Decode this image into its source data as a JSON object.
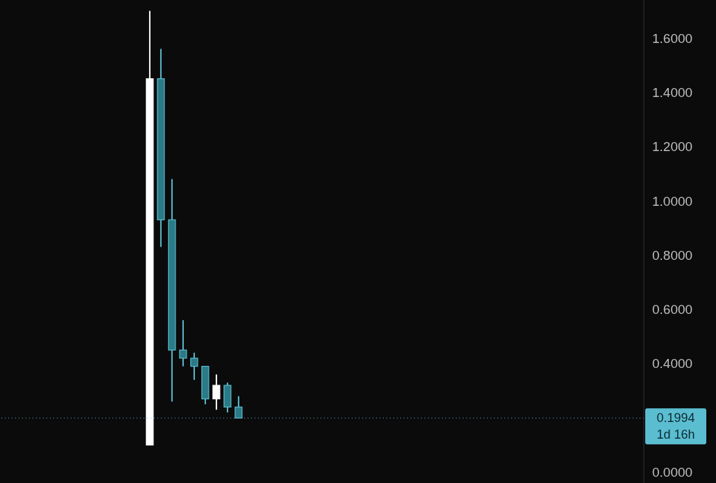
{
  "chart_data": {
    "type": "candlestick",
    "categories": [
      null,
      null,
      null,
      null,
      null,
      null,
      null,
      null,
      null,
      null,
      null,
      null,
      null,
      null,
      null,
      null,
      null,
      null,
      null,
      null,
      null,
      null,
      null,
      null,
      null,
      null,
      null,
      null,
      null,
      null,
      null,
      null,
      null,
      null,
      null,
      null,
      null,
      null,
      null,
      null,
      null,
      null,
      null,
      null,
      null,
      null,
      null,
      null,
      null,
      null,
      null,
      null,
      null,
      null,
      null,
      null,
      null,
      null
    ],
    "ohlc": [
      null,
      null,
      null,
      null,
      null,
      null,
      null,
      null,
      null,
      null,
      null,
      null,
      null,
      [
        0.1,
        1.7,
        0.1,
        1.45
      ],
      [
        1.45,
        1.56,
        0.83,
        0.93
      ],
      [
        0.93,
        1.08,
        0.26,
        0.45
      ],
      [
        0.45,
        0.56,
        0.39,
        0.42
      ],
      [
        0.42,
        0.44,
        0.34,
        0.39
      ],
      [
        0.39,
        0.39,
        0.25,
        0.27
      ],
      [
        0.27,
        0.36,
        0.23,
        0.32
      ],
      [
        0.32,
        0.33,
        0.22,
        0.24
      ],
      [
        0.24,
        0.28,
        0.1994,
        0.1994
      ],
      null,
      null,
      null,
      null,
      null,
      null,
      null,
      null,
      null,
      null,
      null,
      null,
      null,
      null,
      null,
      null,
      null,
      null,
      null,
      null,
      null,
      null,
      null,
      null,
      null,
      null,
      null,
      null,
      null,
      null,
      null,
      null,
      null,
      null,
      null,
      null
    ],
    "colors": [
      null,
      null,
      null,
      null,
      null,
      null,
      null,
      null,
      null,
      null,
      null,
      null,
      null,
      "#ffffff",
      "#2b7a87",
      "#2b7a87",
      "#2b7a87",
      "#2b7a87",
      "#2b7a87",
      "#ffffff",
      "#2b7a87",
      "#2b7a87",
      null,
      null,
      null,
      null,
      null,
      null,
      null,
      null,
      null,
      null,
      null,
      null,
      null,
      null,
      null,
      null,
      null,
      null,
      null,
      null,
      null,
      null,
      null,
      null,
      null,
      null,
      null,
      null,
      null,
      null,
      null,
      null,
      null,
      null,
      null,
      null
    ],
    "ylim": [
      -0.04,
      1.74
    ],
    "yticks": [
      {
        "value": 0,
        "label": "0.0000"
      },
      {
        "value": 0.4,
        "label": "0.4000"
      },
      {
        "value": 0.6,
        "label": "0.6000"
      },
      {
        "value": 0.8,
        "label": "0.8000"
      },
      {
        "value": 1.0,
        "label": "1.0000"
      },
      {
        "value": 1.2,
        "label": "1.2000"
      },
      {
        "value": 1.4,
        "label": "1.4000"
      },
      {
        "value": 1.6,
        "label": "1.6000"
      }
    ],
    "ref_lines": [
      {
        "axis": "y",
        "value": 0.1994,
        "label": "0.1994",
        "color": "#5bbdd0",
        "line_style": "dotted"
      }
    ],
    "annotations": [
      "1d 16h"
    ],
    "grid": false,
    "legend": false
  }
}
